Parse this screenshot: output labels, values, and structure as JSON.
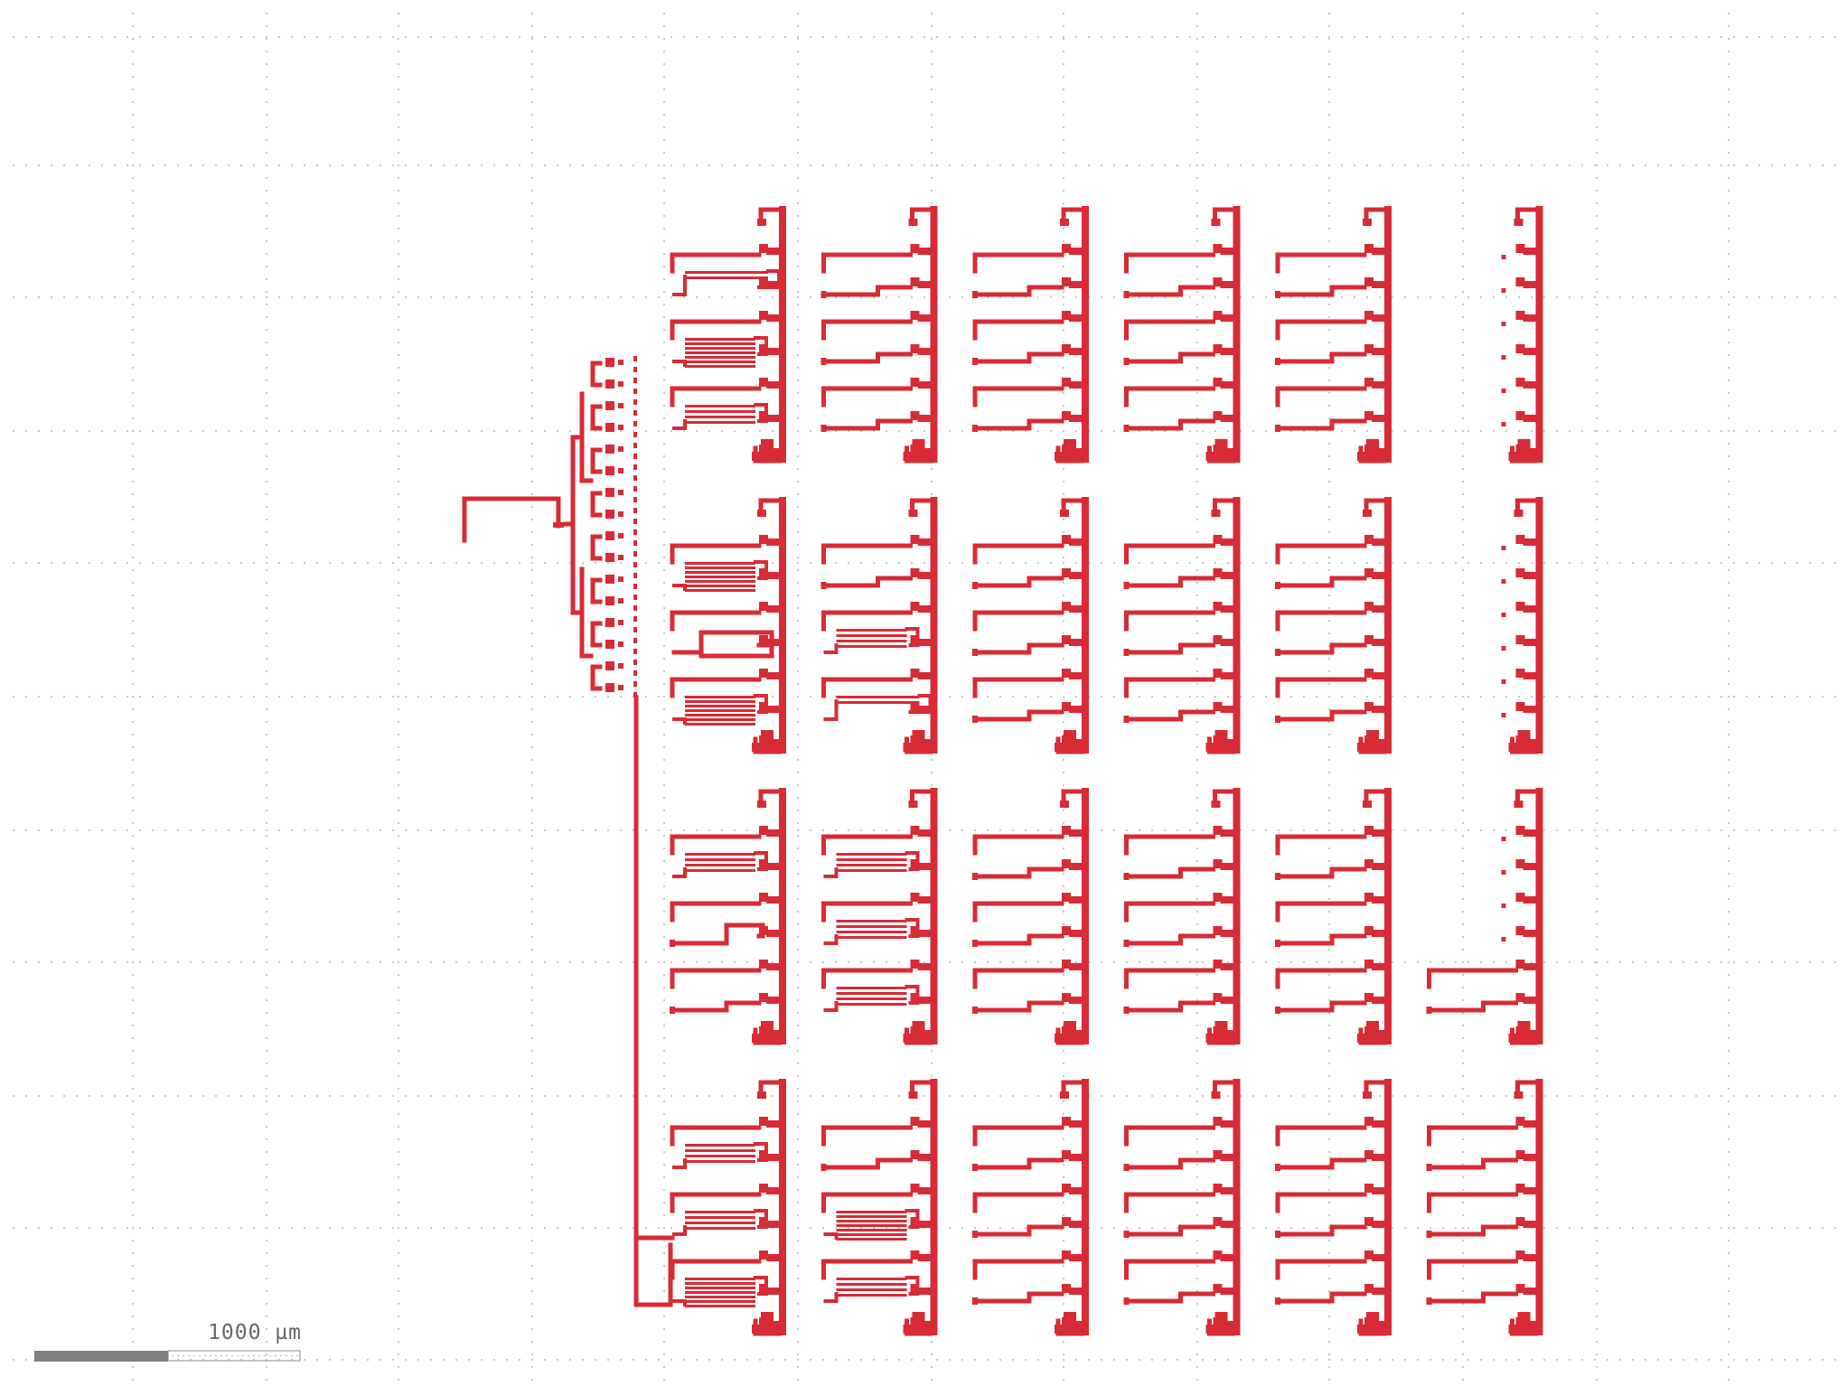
{
  "scale_bar": {
    "label": "1000 µm"
  },
  "colors": {
    "layer": "#d72b36",
    "grid_dots": "#c8c8c8",
    "scale_fill": "#808080",
    "scale_outline": "#8a8a8a",
    "background": "#ffffff"
  },
  "structure": {
    "columns": 6,
    "blocks": 4,
    "rows_per_block": 3,
    "layer_name": "metal"
  }
}
